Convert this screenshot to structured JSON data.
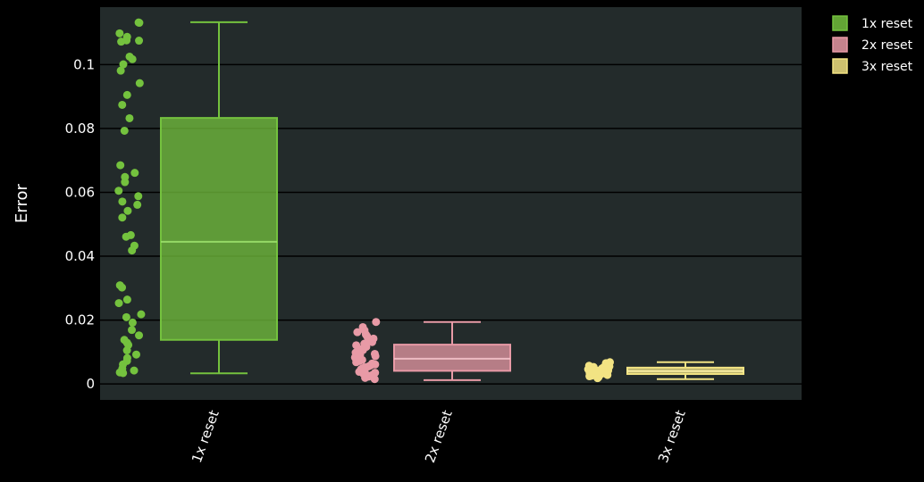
{
  "chart_data": {
    "type": "box",
    "title": "",
    "xlabel": "",
    "ylabel": "Error",
    "ylim": [
      -0.005,
      0.118
    ],
    "yticks": [
      0,
      0.02,
      0.04,
      0.06,
      0.08,
      0.1
    ],
    "ytick_labels": [
      "0",
      "0.02",
      "0.04",
      "0.06",
      "0.08",
      "0.1"
    ],
    "categories": [
      "1x reset",
      "2x reset",
      "3x reset"
    ],
    "grid": true,
    "legend_position": "top-right",
    "background": "#232b2b",
    "series": [
      {
        "name": "1x reset",
        "color": "#74c23e",
        "box": {
          "min": 0.0033,
          "q1": 0.0138,
          "median": 0.0445,
          "q3": 0.0833,
          "max": 0.1133
        },
        "points": [
          0.1132,
          0.1131,
          0.1098,
          0.1087,
          0.1075,
          0.1072,
          0.1076,
          0.1025,
          0.1017,
          0.1001,
          0.0981,
          0.0942,
          0.0905,
          0.0874,
          0.0832,
          0.0793,
          0.0685,
          0.0661,
          0.0648,
          0.0632,
          0.0605,
          0.0588,
          0.0571,
          0.0561,
          0.0542,
          0.0521,
          0.0466,
          0.0461,
          0.0433,
          0.0418,
          0.0309,
          0.0302,
          0.0264,
          0.0253,
          0.0218,
          0.0209,
          0.0192,
          0.0169,
          0.0152,
          0.0138,
          0.0129,
          0.0122,
          0.0105,
          0.0092,
          0.0081,
          0.0072,
          0.0061,
          0.0048,
          0.0042,
          0.0036,
          0.0034
        ]
      },
      {
        "name": "2x reset",
        "color": "#e89aa6",
        "box": {
          "min": 0.0012,
          "q1": 0.0041,
          "median": 0.0079,
          "q3": 0.0123,
          "max": 0.0194
        },
        "points": [
          0.0194,
          0.0178,
          0.0168,
          0.0162,
          0.0155,
          0.0149,
          0.0142,
          0.0135,
          0.0131,
          0.0126,
          0.0121,
          0.0116,
          0.0111,
          0.0106,
          0.0102,
          0.0098,
          0.0094,
          0.0091,
          0.0087,
          0.0083,
          0.0079,
          0.0075,
          0.0072,
          0.0068,
          0.0064,
          0.0061,
          0.0058,
          0.0055,
          0.0052,
          0.0049,
          0.0046,
          0.0043,
          0.0041,
          0.0038,
          0.0035,
          0.0032,
          0.0029,
          0.0026,
          0.0023,
          0.0019,
          0.0015
        ]
      },
      {
        "name": "3x reset",
        "color": "#f2e383",
        "box": {
          "min": 0.0015,
          "q1": 0.0031,
          "median": 0.004,
          "q3": 0.0051,
          "max": 0.0068
        },
        "points": [
          0.0068,
          0.0065,
          0.0062,
          0.0059,
          0.0057,
          0.0055,
          0.0053,
          0.0051,
          0.0049,
          0.0048,
          0.0046,
          0.0045,
          0.0044,
          0.0043,
          0.0042,
          0.0041,
          0.004,
          0.0039,
          0.0038,
          0.0037,
          0.0036,
          0.0035,
          0.0034,
          0.0033,
          0.0032,
          0.0031,
          0.003,
          0.0028,
          0.0026,
          0.0024,
          0.0021,
          0.0018
        ]
      }
    ]
  }
}
